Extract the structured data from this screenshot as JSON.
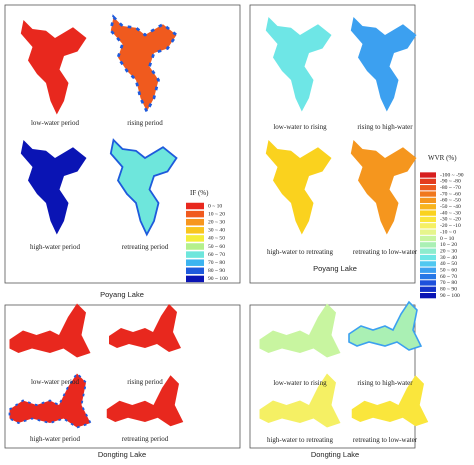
{
  "if_figure": {
    "poyang": {
      "panels": [
        "low-water period",
        "rising period",
        "high-water period",
        "retreating period"
      ],
      "caption": "Poyang Lake"
    },
    "dongting": {
      "panels": [
        "low-water period",
        "rising period",
        "high-water period",
        "retreating period"
      ],
      "caption": "Dongting Lake"
    },
    "legend": {
      "title": "IF (%)",
      "entries": [
        {
          "label": "0 ~ 10",
          "color": "#e8281e"
        },
        {
          "label": "10 ~ 20",
          "color": "#f05a1e"
        },
        {
          "label": "20 ~ 30",
          "color": "#f7961e"
        },
        {
          "label": "30 ~ 40",
          "color": "#f9c51e"
        },
        {
          "label": "40 ~ 50",
          "color": "#f4ee3a"
        },
        {
          "label": "50 ~ 60",
          "color": "#b4f08c"
        },
        {
          "label": "60 ~ 70",
          "color": "#6ee6dc"
        },
        {
          "label": "70 ~ 80",
          "color": "#3cb4f0"
        },
        {
          "label": "80 ~ 90",
          "color": "#1e5adc"
        },
        {
          "label": "90 ~ 100",
          "color": "#0a14b4"
        }
      ]
    }
  },
  "wvr_figure": {
    "poyang": {
      "panels": [
        "low-water to rising",
        "rising to high-water",
        "high-water to retreating",
        "retreating to low-water"
      ],
      "caption": "Poyang Lake"
    },
    "dongting": {
      "panels": [
        "low-water to rising",
        "rising to high-water",
        "high-water to retreating",
        "retreating to low-water"
      ],
      "caption": "Dongting Lake"
    },
    "legend": {
      "title": "WVR (%)",
      "entries": [
        {
          "label": "-100 ~ -90",
          "color": "#d71e1e"
        },
        {
          "label": "-90 ~ -80",
          "color": "#e33c1e"
        },
        {
          "label": "-80 ~ -70",
          "color": "#ec5a1e"
        },
        {
          "label": "-70 ~ -60",
          "color": "#f0781e"
        },
        {
          "label": "-60 ~ -50",
          "color": "#f5961e"
        },
        {
          "label": "-50 ~ -40",
          "color": "#f8b41e"
        },
        {
          "label": "-40 ~ -30",
          "color": "#fad21e"
        },
        {
          "label": "-30 ~ -20",
          "color": "#fae63c"
        },
        {
          "label": "-20 ~ -10",
          "color": "#f5f064"
        },
        {
          "label": "-10 ~ 0",
          "color": "#e6f58c"
        },
        {
          "label": "0 ~ 10",
          "color": "#c8f5a0"
        },
        {
          "label": "10 ~ 20",
          "color": "#aaf0b4"
        },
        {
          "label": "20 ~ 30",
          "color": "#8ceccd"
        },
        {
          "label": "30 ~ 40",
          "color": "#6ee6e6"
        },
        {
          "label": "40 ~ 50",
          "color": "#50c8f0"
        },
        {
          "label": "50 ~ 60",
          "color": "#3ca0f0"
        },
        {
          "label": "60 ~ 70",
          "color": "#2878e6"
        },
        {
          "label": "70 ~ 80",
          "color": "#1e50dc"
        },
        {
          "label": "80 ~ 90",
          "color": "#1432c8"
        },
        {
          "label": "90 ~ 100",
          "color": "#0a14b4"
        }
      ]
    }
  }
}
